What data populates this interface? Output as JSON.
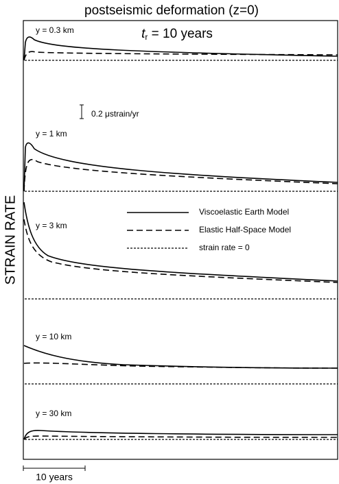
{
  "title": "postseismic deformation (z=0)",
  "subtitle": {
    "symbol": "t",
    "subscript": "r",
    "text": " = 10 years"
  },
  "y_axis_label": "STRAIN RATE",
  "scale_bar_label": "0.2 μstrain/yr",
  "time_bar_label": "10 years",
  "panels": [
    "y = 0.3 km",
    "y = 1 km",
    "y = 3 km",
    "y = 10 km",
    "y = 30 km"
  ],
  "legend": [
    "Viscoelastic Earth Model",
    "Elastic Half-Space Model",
    "strain rate = 0"
  ]
}
